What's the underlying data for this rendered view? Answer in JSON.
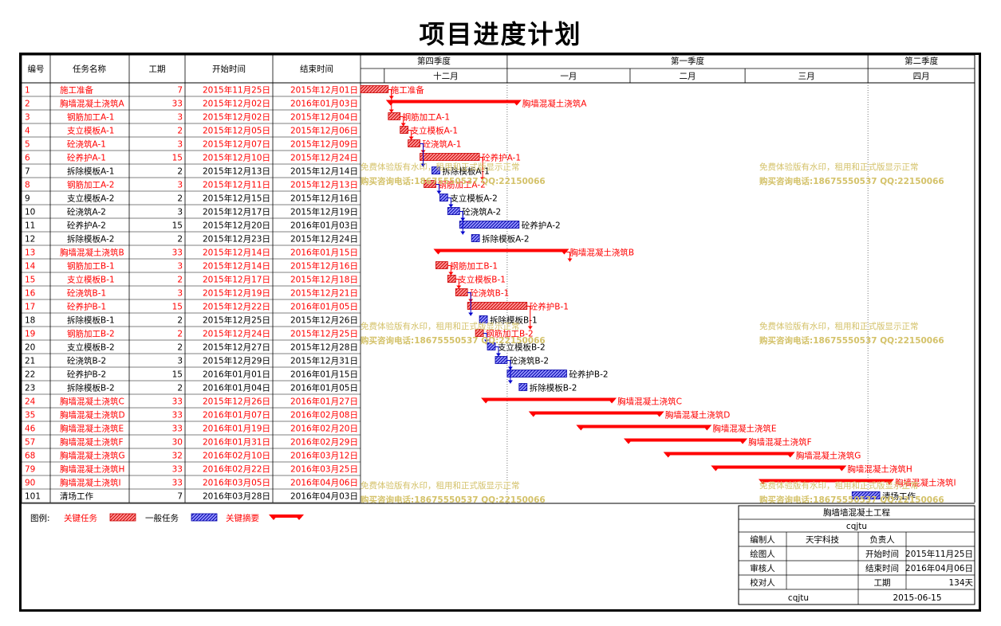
{
  "title": "项目进度计划",
  "headers": {
    "id": "编号",
    "name": "任务名称",
    "duration": "工期",
    "start": "开始时间",
    "end": "结束时间"
  },
  "quarters": [
    "第四季度",
    "第一季度",
    "第二季度"
  ],
  "months": [
    "十二月",
    "一月",
    "二月",
    "三月",
    "四月"
  ],
  "tasks": [
    {
      "id": "1",
      "name": "施工准备",
      "dur": "7",
      "start": "2015年11月25日",
      "end": "2015年12月01日",
      "type": "critical",
      "s": 0,
      "e": 7
    },
    {
      "id": "2",
      "name": "胸墙混凝土浇筑A",
      "dur": "33",
      "start": "2015年12月02日",
      "end": "2016年01月03日",
      "type": "summary",
      "s": 7,
      "e": 40
    },
    {
      "id": "3",
      "name": "钢筋加工A-1",
      "dur": "3",
      "start": "2015年12月02日",
      "end": "2015年12月04日",
      "type": "critical",
      "s": 7,
      "e": 10
    },
    {
      "id": "4",
      "name": "支立模板A-1",
      "dur": "2",
      "start": "2015年12月05日",
      "end": "2015年12月06日",
      "type": "critical",
      "s": 10,
      "e": 12
    },
    {
      "id": "5",
      "name": "砼浇筑A-1",
      "dur": "3",
      "start": "2015年12月07日",
      "end": "2015年12月09日",
      "type": "critical",
      "s": 12,
      "e": 15
    },
    {
      "id": "6",
      "name": "砼养护A-1",
      "dur": "15",
      "start": "2015年12月10日",
      "end": "2015年12月24日",
      "type": "critical",
      "s": 15,
      "e": 30
    },
    {
      "id": "7",
      "name": "拆除模板A-1",
      "dur": "2",
      "start": "2015年12月13日",
      "end": "2015年12月14日",
      "type": "normal",
      "s": 18,
      "e": 20
    },
    {
      "id": "8",
      "name": "钢筋加工A-2",
      "dur": "3",
      "start": "2015年12月11日",
      "end": "2015年12月13日",
      "type": "critical",
      "s": 16,
      "e": 19
    },
    {
      "id": "9",
      "name": "支立模板A-2",
      "dur": "2",
      "start": "2015年12月15日",
      "end": "2015年12月16日",
      "type": "normal",
      "s": 20,
      "e": 22
    },
    {
      "id": "10",
      "name": "砼浇筑A-2",
      "dur": "3",
      "start": "2015年12月17日",
      "end": "2015年12月19日",
      "type": "normal",
      "s": 22,
      "e": 25
    },
    {
      "id": "11",
      "name": "砼养护A-2",
      "dur": "15",
      "start": "2015年12月20日",
      "end": "2016年01月03日",
      "type": "normal",
      "s": 25,
      "e": 40
    },
    {
      "id": "12",
      "name": "拆除模板A-2",
      "dur": "2",
      "start": "2015年12月23日",
      "end": "2015年12月24日",
      "type": "normal",
      "s": 28,
      "e": 30
    },
    {
      "id": "13",
      "name": "胸墙混凝土浇筑B",
      "dur": "33",
      "start": "2015年12月14日",
      "end": "2016年01月15日",
      "type": "summary",
      "s": 19,
      "e": 52
    },
    {
      "id": "14",
      "name": "钢筋加工B-1",
      "dur": "3",
      "start": "2015年12月14日",
      "end": "2015年12月16日",
      "type": "critical",
      "s": 19,
      "e": 22
    },
    {
      "id": "15",
      "name": "支立模板B-1",
      "dur": "2",
      "start": "2015年12月17日",
      "end": "2015年12月18日",
      "type": "critical",
      "s": 22,
      "e": 24
    },
    {
      "id": "16",
      "name": "砼浇筑B-1",
      "dur": "3",
      "start": "2015年12月19日",
      "end": "2015年12月21日",
      "type": "critical",
      "s": 24,
      "e": 27
    },
    {
      "id": "17",
      "name": "砼养护B-1",
      "dur": "15",
      "start": "2015年12月22日",
      "end": "2016年01月05日",
      "type": "critical",
      "s": 27,
      "e": 42
    },
    {
      "id": "18",
      "name": "拆除模板B-1",
      "dur": "2",
      "start": "2015年12月25日",
      "end": "2015年12月26日",
      "type": "normal",
      "s": 30,
      "e": 32
    },
    {
      "id": "19",
      "name": "钢筋加工B-2",
      "dur": "2",
      "start": "2015年12月24日",
      "end": "2015年12月25日",
      "type": "critical",
      "s": 29,
      "e": 31
    },
    {
      "id": "20",
      "name": "支立模板B-2",
      "dur": "2",
      "start": "2015年12月27日",
      "end": "2015年12月28日",
      "type": "normal",
      "s": 32,
      "e": 34
    },
    {
      "id": "21",
      "name": "砼浇筑B-2",
      "dur": "3",
      "start": "2015年12月29日",
      "end": "2015年12月31日",
      "type": "normal",
      "s": 34,
      "e": 37
    },
    {
      "id": "22",
      "name": "砼养护B-2",
      "dur": "15",
      "start": "2016年01月01日",
      "end": "2016年01月15日",
      "type": "normal",
      "s": 37,
      "e": 52
    },
    {
      "id": "23",
      "name": "拆除模板B-2",
      "dur": "2",
      "start": "2016年01月04日",
      "end": "2016年01月05日",
      "type": "normal",
      "s": 40,
      "e": 42
    },
    {
      "id": "24",
      "name": "胸墙混凝土浇筑C",
      "dur": "33",
      "start": "2015年12月26日",
      "end": "2016年01月27日",
      "type": "summary",
      "s": 31,
      "e": 64
    },
    {
      "id": "35",
      "name": "胸墙混凝土浇筑D",
      "dur": "33",
      "start": "2016年01月07日",
      "end": "2016年02月08日",
      "type": "summary",
      "s": 43,
      "e": 76
    },
    {
      "id": "46",
      "name": "胸墙混凝土浇筑E",
      "dur": "33",
      "start": "2016年01月19日",
      "end": "2016年02月20日",
      "type": "summary",
      "s": 55,
      "e": 88
    },
    {
      "id": "57",
      "name": "胸墙混凝土浇筑F",
      "dur": "30",
      "start": "2016年01月31日",
      "end": "2016年02月29日",
      "type": "summary",
      "s": 67,
      "e": 97
    },
    {
      "id": "68",
      "name": "胸墙混凝土浇筑G",
      "dur": "32",
      "start": "2016年02月10日",
      "end": "2016年03月12日",
      "type": "summary",
      "s": 77,
      "e": 109
    },
    {
      "id": "79",
      "name": "胸墙混凝土浇筑H",
      "dur": "33",
      "start": "2016年02月22日",
      "end": "2016年03月25日",
      "type": "summary",
      "s": 89,
      "e": 122
    },
    {
      "id": "90",
      "name": "胸墙混凝土浇筑I",
      "dur": "33",
      "start": "2016年03月05日",
      "end": "2016年04月06日",
      "type": "summary",
      "s": 101,
      "e": 134
    },
    {
      "id": "101",
      "name": "清场工作",
      "dur": "7",
      "start": "2016年03月28日",
      "end": "2016年04月03日",
      "type": "normal",
      "s": 124,
      "e": 131
    }
  ],
  "legend": {
    "label": "图例:",
    "critical": "关键任务",
    "normal": "一般任务",
    "summary": "关键摘要"
  },
  "watermark": {
    "line1": "免费体验版有水印，租用和正式版显示正常",
    "line2": "购买咨询电话:18675550537 QQ:22150066"
  },
  "info": {
    "project": "胸墙墙混凝土工程",
    "code": "cqjtu",
    "editor_label": "编制人",
    "editor": "天宇科技",
    "owner_label": "负责人",
    "drawer_label": "绘图人",
    "start_label": "开始时间",
    "start": "2015年11月25日",
    "reviewer_label": "审核人",
    "end_label": "结束时间",
    "end": "2016年04月06日",
    "checker_label": "校对人",
    "dur_label": "工期",
    "dur": "134天",
    "footer_left": "cqjtu",
    "footer_right": "2015-06-15"
  },
  "colors": {
    "critical": "#ff0000",
    "normal": "#0000cc",
    "summary": "#ff0000",
    "critical_text": "#ff0000"
  }
}
